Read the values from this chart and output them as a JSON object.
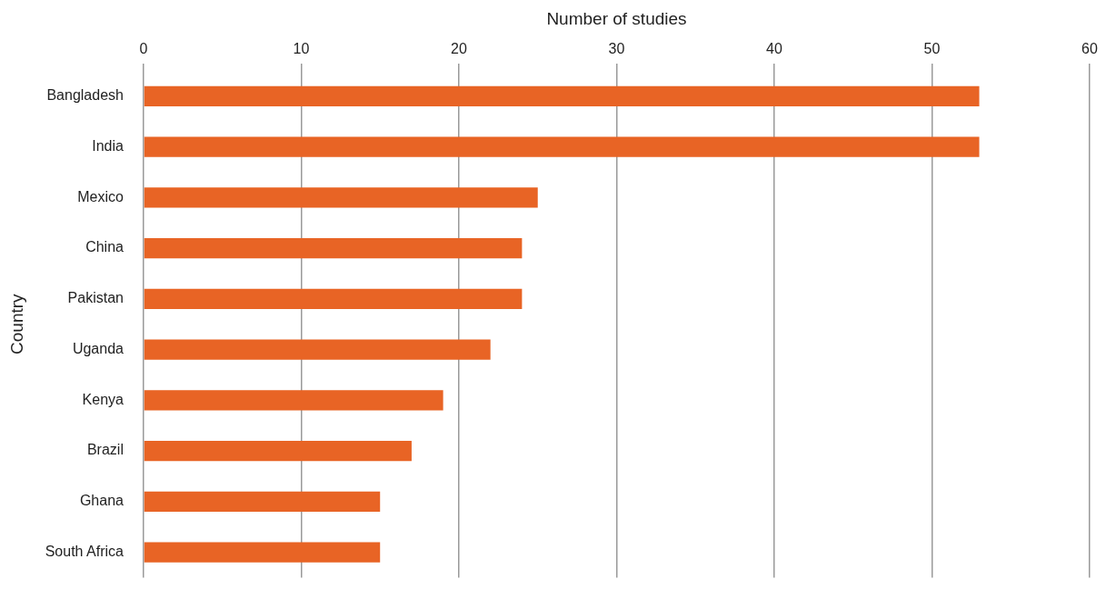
{
  "chart_data": {
    "type": "bar",
    "orientation": "horizontal",
    "xlabel": "Number of studies",
    "ylabel": "Country",
    "categories": [
      "Bangladesh",
      "India",
      "Mexico",
      "China",
      "Pakistan",
      "Uganda",
      "Kenya",
      "Brazil",
      "Ghana",
      "South Africa"
    ],
    "values": [
      53,
      53,
      25,
      24,
      24,
      22,
      19,
      17,
      15,
      15
    ],
    "color": "#e86425",
    "xlim": [
      0,
      60
    ],
    "xticks": [
      0,
      10,
      20,
      30,
      40,
      50,
      60
    ],
    "grid": "x",
    "legend": false
  }
}
